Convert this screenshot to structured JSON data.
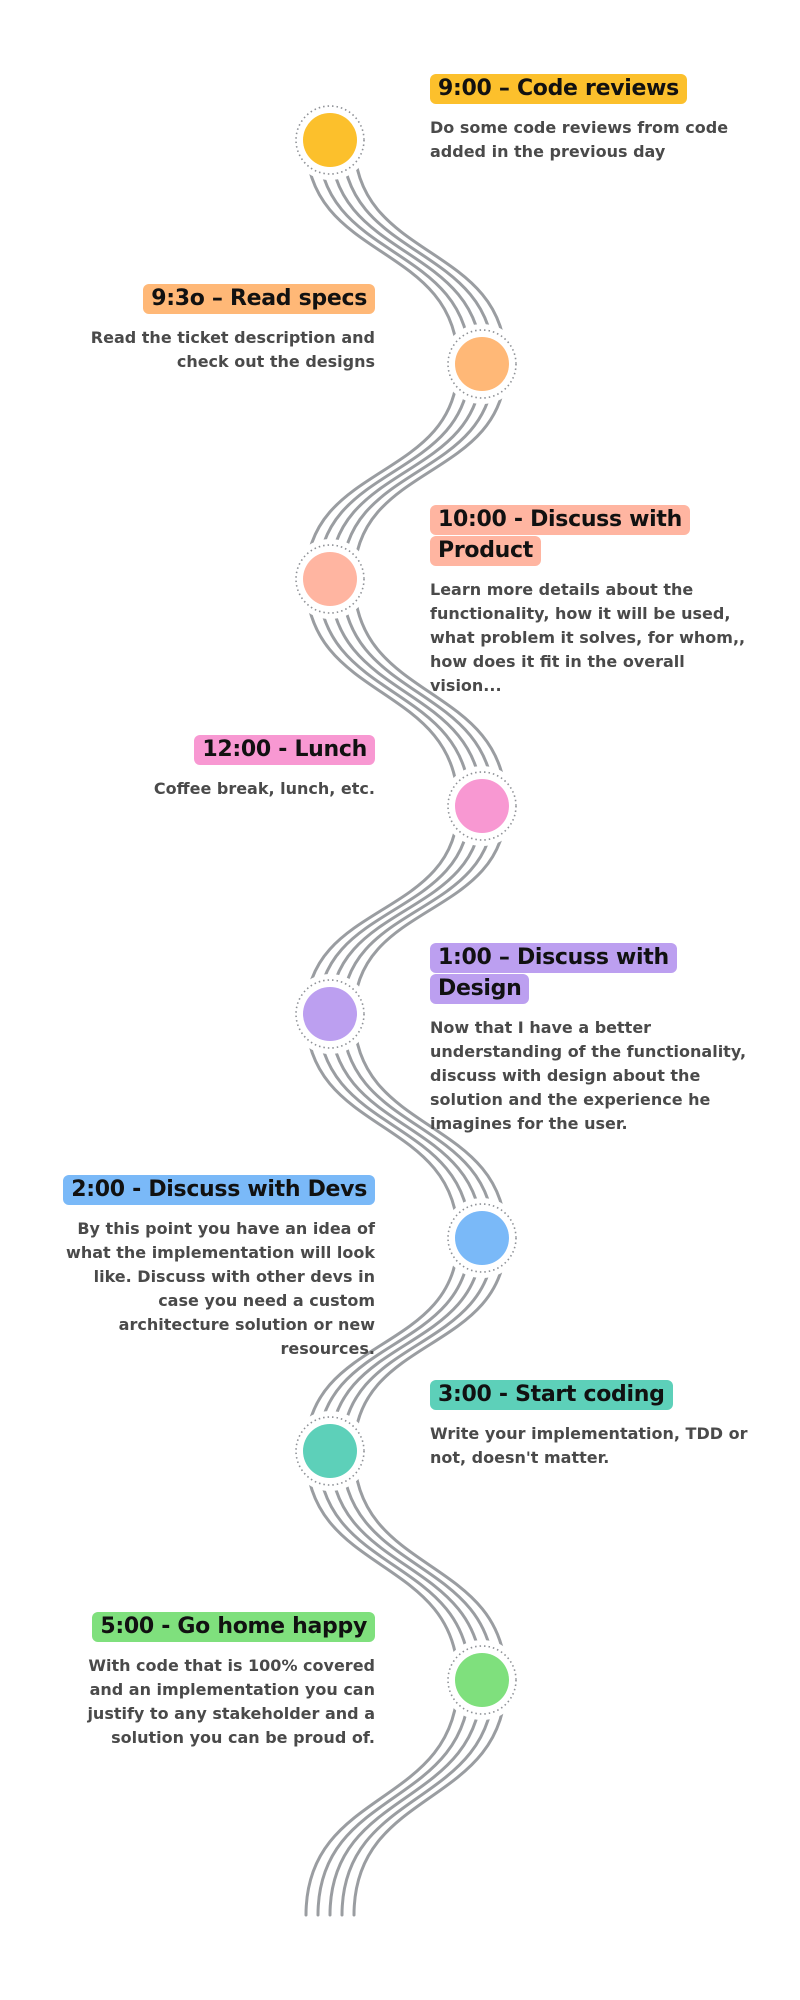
{
  "colors": {
    "strand": "#9a9da1",
    "ring": "#8e9196"
  },
  "events": [
    {
      "time": "9:00",
      "title": "9:00 – Code reviews",
      "description": "Do some code reviews from code added in the previous day",
      "color": "#fcc02c",
      "side": "right"
    },
    {
      "time": "9:3o",
      "title": "9:3o – Read specs",
      "description": "Read the ticket description and check out the designs",
      "color": "#ffb877",
      "side": "left"
    },
    {
      "time": "10:00",
      "title": "10:00 - Discuss with Product",
      "description": "Learn more details about the functionality, how it will be used, what problem it solves, for whom,, how does it fit in the overall vision...",
      "color": "#ffb5a1",
      "side": "right"
    },
    {
      "time": "12:00",
      "title": "12:00 - Lunch",
      "description": "Coffee break, lunch, etc.",
      "color": "#f898d2",
      "side": "left"
    },
    {
      "time": "1:00",
      "title": "1:00 – Discuss with Design",
      "description": "Now that I have a better understanding of the functionality, discuss with design about the solution and the experience he imagines for the user.",
      "color": "#bc9ff0",
      "side": "right"
    },
    {
      "time": "2:00",
      "title": "2:00 - Discuss with Devs",
      "description": "By this point you have an idea of what the implementation will look like. Discuss with other devs in case you need a custom architecture solution or new resources.",
      "color": "#7ab9f8",
      "side": "left"
    },
    {
      "time": "3:00",
      "title": "3:00 - Start coding",
      "description": "Write your implementation, TDD or not, doesn't matter.",
      "color": "#5dd0b9",
      "side": "right"
    },
    {
      "time": "5:00",
      "title": "5:00 - Go home happy",
      "description": "With code that is 100% covered and an implementation you can justify to any stakeholder and a solution you can be proud of.",
      "color": "#7fe07d",
      "side": "left"
    }
  ]
}
